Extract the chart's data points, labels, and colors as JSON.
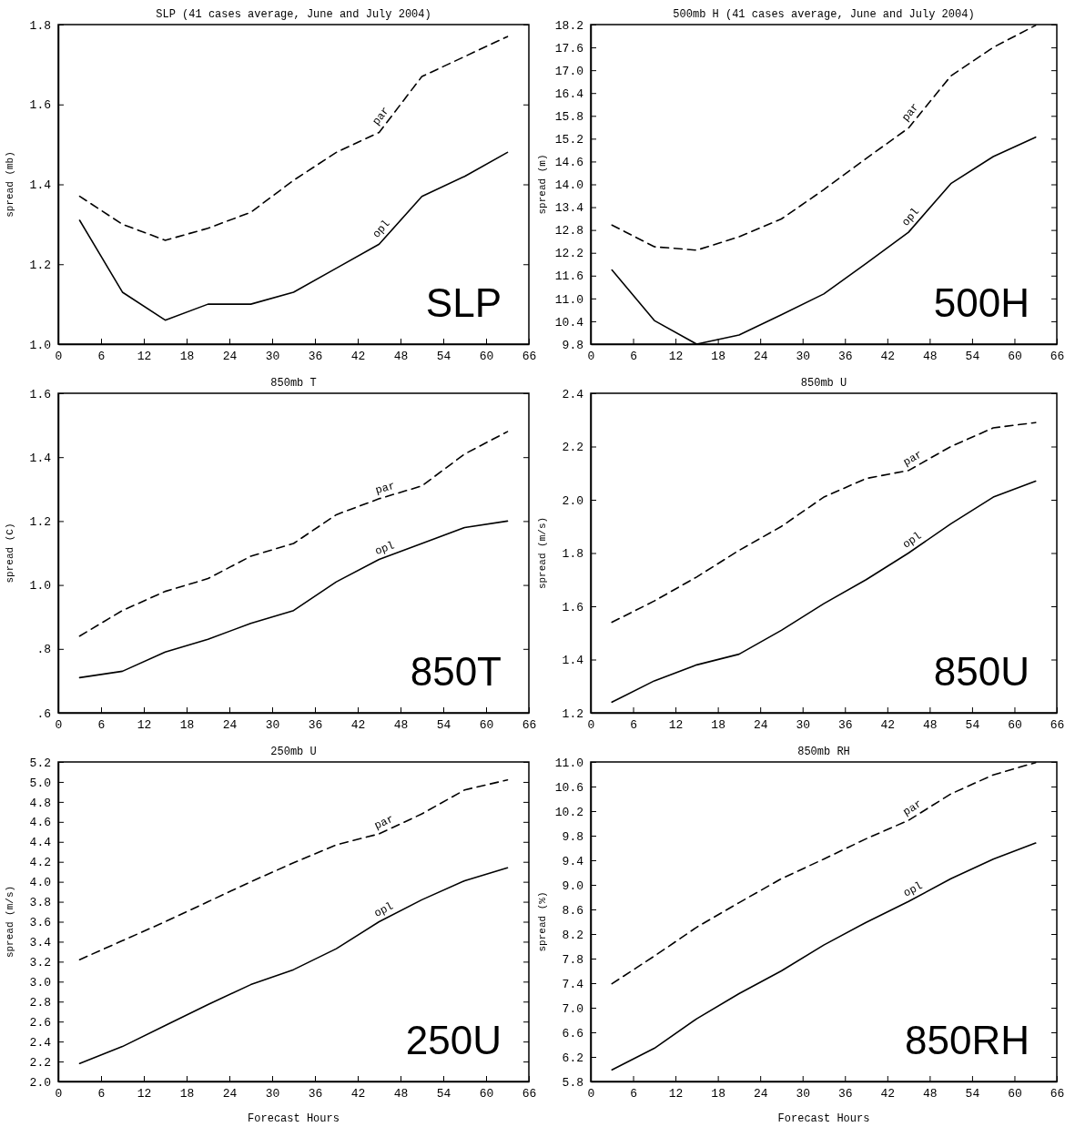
{
  "chart_data": [
    {
      "type": "line",
      "title": "SLP (41 cases average, June and July 2004)",
      "ylabel": "spread (mb)",
      "x": [
        3,
        9,
        15,
        21,
        27,
        33,
        39,
        45,
        51,
        57,
        63
      ],
      "xlim": [
        0,
        66
      ],
      "xticks": [
        0,
        6,
        12,
        18,
        24,
        30,
        36,
        42,
        48,
        54,
        60,
        66
      ],
      "ylim": [
        1.0,
        1.8
      ],
      "yticks": [
        {
          "value": 1,
          "label": "1.0"
        },
        1.2,
        1.4,
        1.6,
        1.8
      ],
      "grid": false,
      "annotations": [
        "SLP"
      ],
      "series": [
        {
          "name": "par",
          "color": "#000000",
          "line_style": "dashed",
          "values": [
            1.37,
            1.3,
            1.26,
            1.29,
            1.33,
            1.41,
            1.48,
            1.53,
            1.67,
            1.72,
            1.77
          ]
        },
        {
          "name": "opl",
          "color": "#000000",
          "line_style": "solid",
          "values": [
            1.31,
            1.13,
            1.06,
            1.1,
            1.1,
            1.13,
            1.19,
            1.25,
            1.37,
            1.42,
            1.48
          ]
        }
      ]
    },
    {
      "type": "line",
      "title": "500mb H (41 cases average, June and July 2004)",
      "ylabel": "spread (m)",
      "x": [
        3,
        9,
        15,
        21,
        27,
        33,
        39,
        45,
        51,
        57,
        63
      ],
      "xlim": [
        0,
        66
      ],
      "xticks": [
        0,
        6,
        12,
        18,
        24,
        30,
        36,
        42,
        48,
        54,
        60,
        66
      ],
      "ylim": [
        9.8,
        18.2
      ],
      "yticks": [
        9.8,
        10.4,
        {
          "value": 11,
          "label": "11.0"
        },
        11.6,
        12.2,
        12.8,
        13.4,
        {
          "value": 14,
          "label": "14.0"
        },
        14.6,
        15.2,
        15.8,
        16.4,
        {
          "value": 17,
          "label": "17.0"
        },
        17.6,
        18.2
      ],
      "grid": false,
      "annotations": [
        "500H"
      ],
      "series": [
        {
          "name": "par",
          "color": "#000000",
          "line_style": "dashed",
          "values": [
            12.93,
            12.36,
            12.27,
            12.62,
            13.09,
            13.86,
            14.68,
            15.48,
            16.85,
            17.6,
            18.18
          ]
        },
        {
          "name": "opl",
          "color": "#000000",
          "line_style": "solid",
          "values": [
            11.75,
            10.42,
            9.8,
            10.04,
            10.57,
            11.12,
            11.92,
            12.74,
            14.02,
            14.73,
            15.24
          ]
        }
      ]
    },
    {
      "type": "line",
      "title": "850mb T",
      "ylabel": "spread (C)",
      "x": [
        3,
        9,
        15,
        21,
        27,
        33,
        39,
        45,
        51,
        57,
        63
      ],
      "xlim": [
        0,
        66
      ],
      "xticks": [
        0,
        6,
        12,
        18,
        24,
        30,
        36,
        42,
        48,
        54,
        60,
        66
      ],
      "ylim": [
        0.6,
        1.6
      ],
      "yticks": [
        {
          "value": 0.6,
          "label": ".6"
        },
        {
          "value": 0.8,
          "label": ".8"
        },
        {
          "value": 1,
          "label": "1.0"
        },
        1.2,
        1.4,
        1.6
      ],
      "grid": false,
      "annotations": [
        "850T"
      ],
      "series": [
        {
          "name": "par",
          "color": "#000000",
          "line_style": "dashed",
          "values": [
            0.84,
            0.92,
            0.98,
            1.02,
            1.09,
            1.13,
            1.22,
            1.27,
            1.31,
            1.41,
            1.48
          ]
        },
        {
          "name": "opl",
          "color": "#000000",
          "line_style": "solid",
          "values": [
            0.71,
            0.73,
            0.79,
            0.83,
            0.88,
            0.92,
            1.01,
            1.08,
            1.13,
            1.18,
            1.2
          ]
        }
      ]
    },
    {
      "type": "line",
      "title": "850mb U",
      "ylabel": "spread (m/s)",
      "x": [
        3,
        9,
        15,
        21,
        27,
        33,
        39,
        45,
        51,
        57,
        63
      ],
      "xlim": [
        0,
        66
      ],
      "xticks": [
        0,
        6,
        12,
        18,
        24,
        30,
        36,
        42,
        48,
        54,
        60,
        66
      ],
      "ylim": [
        1.2,
        2.4
      ],
      "yticks": [
        1.2,
        1.4,
        1.6,
        1.8,
        {
          "value": 2,
          "label": "2.0"
        },
        2.2,
        2.4
      ],
      "grid": false,
      "annotations": [
        "850U"
      ],
      "series": [
        {
          "name": "par",
          "color": "#000000",
          "line_style": "dashed",
          "values": [
            1.54,
            1.62,
            1.71,
            1.81,
            1.9,
            2.01,
            2.08,
            2.11,
            2.2,
            2.27,
            2.29
          ]
        },
        {
          "name": "opl",
          "color": "#000000",
          "line_style": "solid",
          "values": [
            1.24,
            1.32,
            1.38,
            1.42,
            1.51,
            1.61,
            1.7,
            1.8,
            1.91,
            2.01,
            2.07
          ]
        }
      ]
    },
    {
      "type": "line",
      "title": "250mb U",
      "xlabel": "Forecast Hours",
      "ylabel": "spread (m/s)",
      "x": [
        3,
        9,
        15,
        21,
        27,
        33,
        39,
        45,
        51,
        57,
        63
      ],
      "xlim": [
        0,
        66
      ],
      "xticks": [
        0,
        6,
        12,
        18,
        24,
        30,
        36,
        42,
        48,
        54,
        60,
        66
      ],
      "ylim": [
        2.0,
        5.2
      ],
      "yticks": [
        {
          "value": 2,
          "label": "2.0"
        },
        2.2,
        2.4,
        2.6,
        2.8,
        {
          "value": 3,
          "label": "3.0"
        },
        3.2,
        3.4,
        3.6,
        3.8,
        {
          "value": 4,
          "label": "4.0"
        },
        4.2,
        4.4,
        4.6,
        4.8,
        {
          "value": 5,
          "label": "5.0"
        },
        5.2
      ],
      "grid": false,
      "annotations": [
        "250U"
      ],
      "series": [
        {
          "name": "par",
          "color": "#000000",
          "line_style": "dashed",
          "values": [
            3.22,
            3.41,
            3.6,
            3.8,
            4.0,
            4.19,
            4.37,
            4.48,
            4.68,
            4.92,
            5.02
          ]
        },
        {
          "name": "opl",
          "color": "#000000",
          "line_style": "solid",
          "values": [
            2.18,
            2.35,
            2.56,
            2.77,
            2.97,
            3.12,
            3.33,
            3.6,
            3.82,
            4.01,
            4.14
          ]
        }
      ]
    },
    {
      "type": "line",
      "title": "850mb RH",
      "xlabel": "Forecast Hours",
      "ylabel": "spread (%)",
      "x": [
        3,
        9,
        15,
        21,
        27,
        33,
        39,
        45,
        51,
        57,
        63
      ],
      "xlim": [
        0,
        66
      ],
      "xticks": [
        0,
        6,
        12,
        18,
        24,
        30,
        36,
        42,
        48,
        54,
        60,
        66
      ],
      "ylim": [
        5.8,
        11.0
      ],
      "yticks": [
        5.8,
        6.2,
        6.6,
        {
          "value": 7,
          "label": "7.0"
        },
        7.4,
        7.8,
        8.2,
        8.6,
        {
          "value": 9,
          "label": "9.0"
        },
        9.4,
        9.8,
        10.2,
        10.6,
        {
          "value": 11,
          "label": "11.0"
        }
      ],
      "grid": false,
      "annotations": [
        "850RH"
      ],
      "series": [
        {
          "name": "par",
          "color": "#000000",
          "line_style": "dashed",
          "values": [
            7.39,
            7.84,
            8.31,
            8.71,
            9.1,
            9.42,
            9.75,
            10.05,
            10.48,
            10.79,
            10.99
          ]
        },
        {
          "name": "opl",
          "color": "#000000",
          "line_style": "solid",
          "values": [
            5.99,
            6.34,
            6.82,
            7.23,
            7.6,
            8.02,
            8.39,
            8.73,
            9.1,
            9.42,
            9.68
          ]
        }
      ]
    }
  ]
}
